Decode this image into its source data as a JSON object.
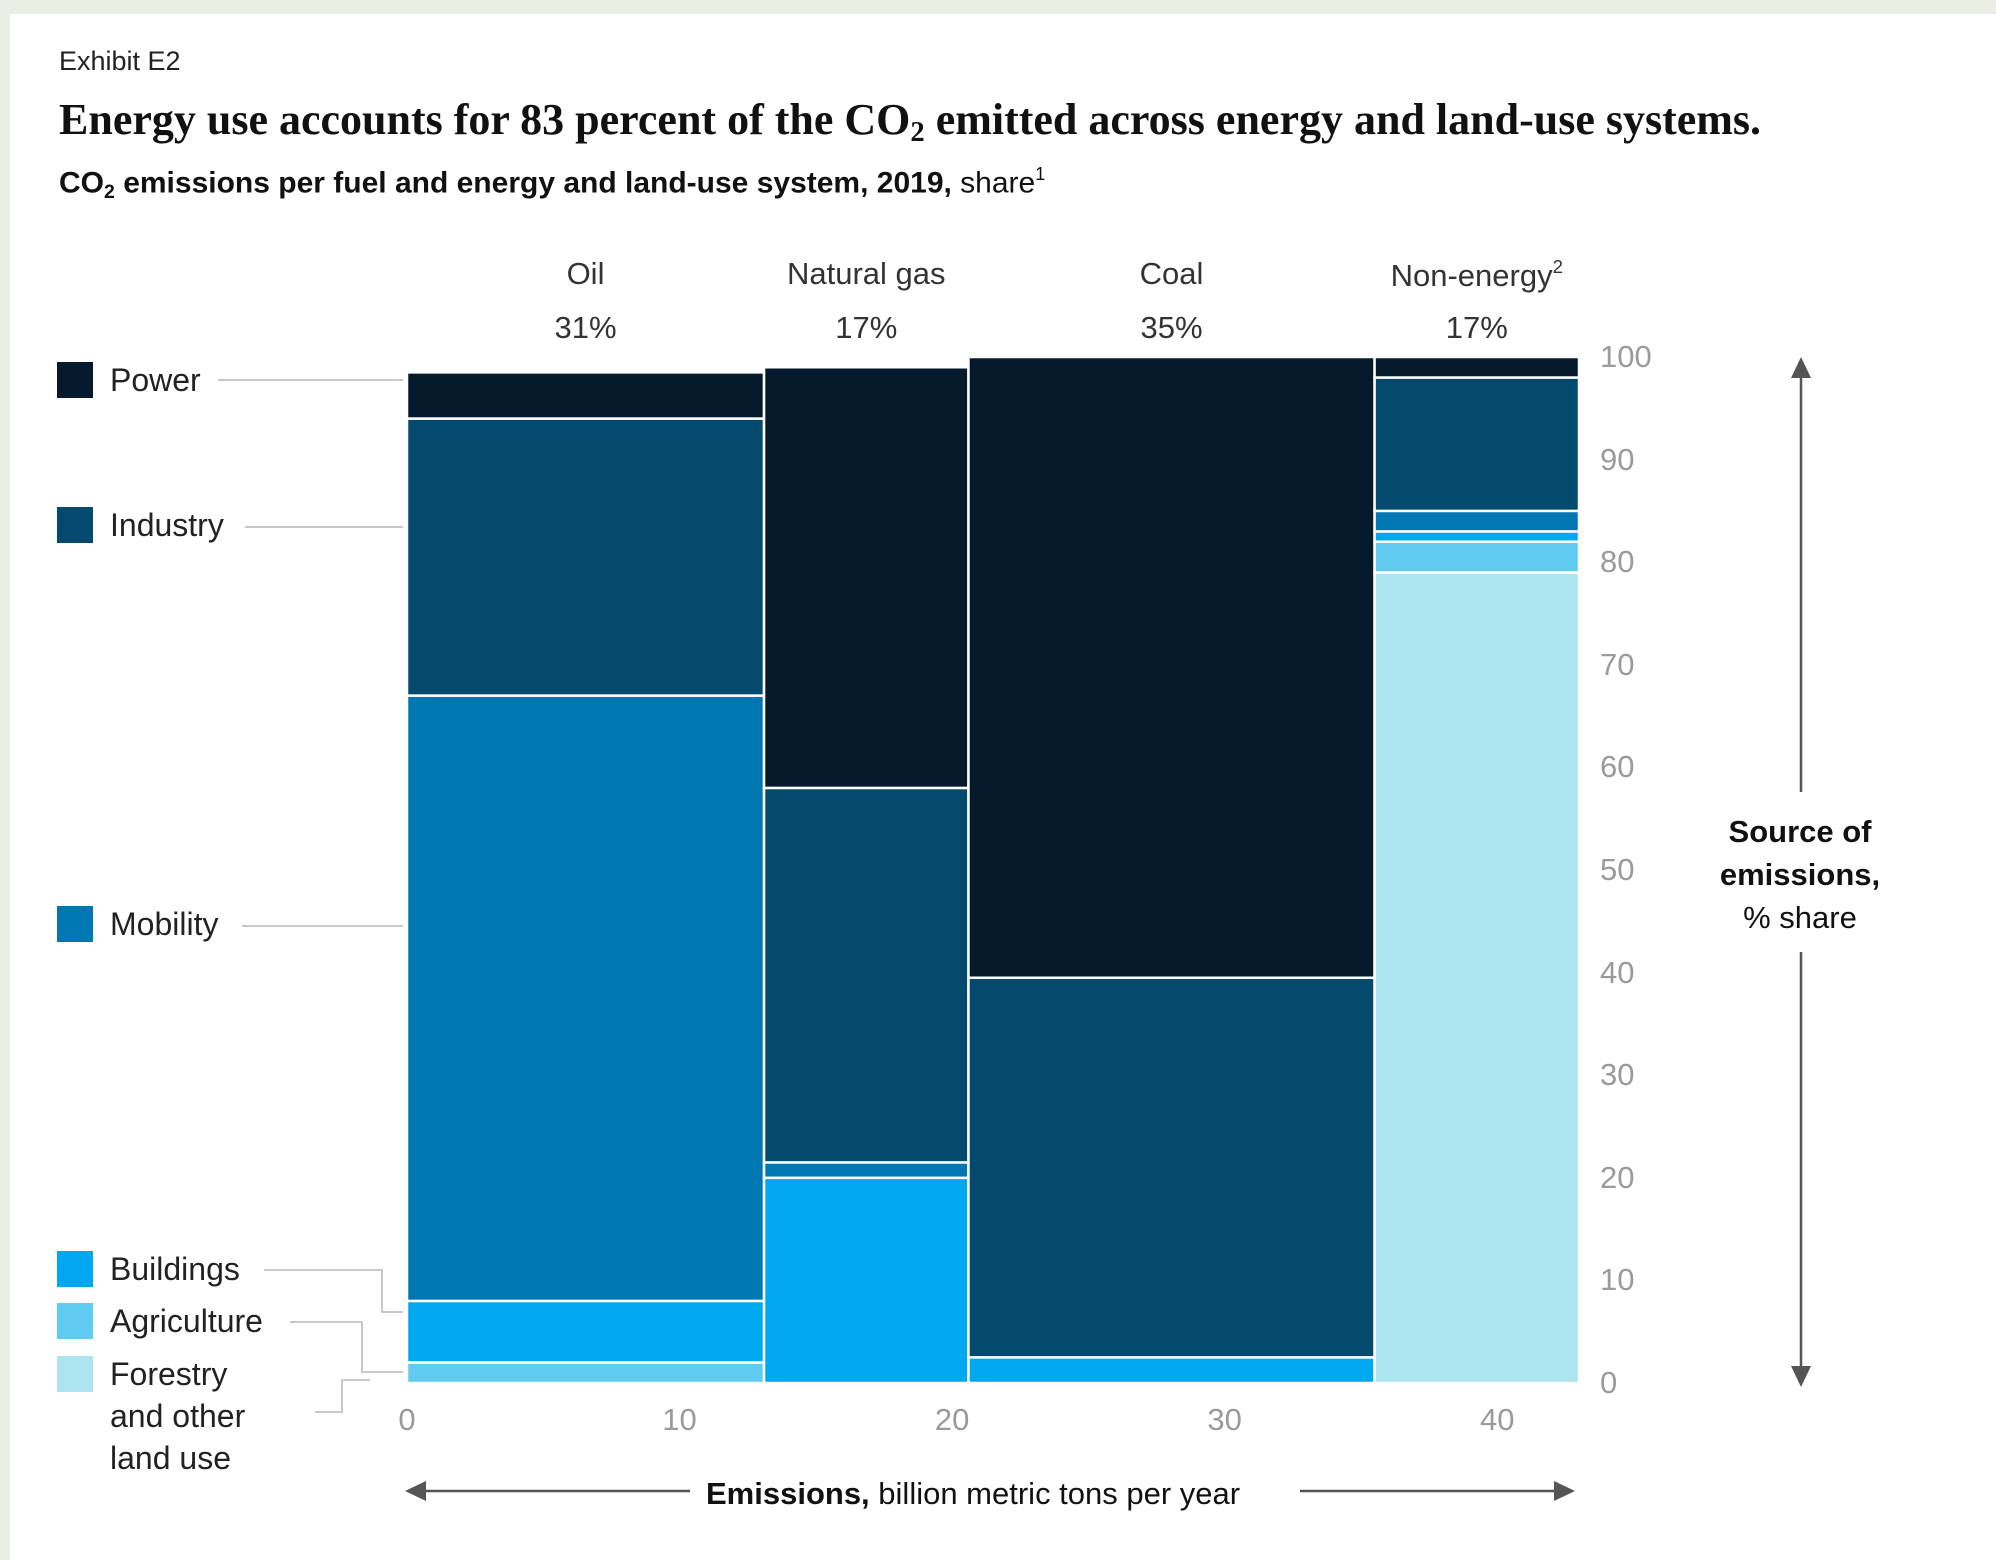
{
  "header": {
    "exhibit": "Exhibit E2",
    "title_pre": "Energy use accounts for 83 percent of the CO",
    "title_sub": "2",
    "title_post": " emitted across energy and land-use systems.",
    "subtitle_bold_pre": "CO",
    "subtitle_sub": "2",
    "subtitle_bold_post": " emissions per fuel and energy and land-use system, 2019,",
    "subtitle_rest": " share",
    "subtitle_footnote": "1"
  },
  "colors": {
    "Power": "#061a2d",
    "Industry": "#04496e",
    "Mobility": "#0077b1",
    "Buildings": "#00a8f0",
    "Agriculture": "#5fcbf1",
    "Forestry and other land use": "#ace4ef"
  },
  "legend": [
    {
      "label": "Power",
      "color": "#061a2d"
    },
    {
      "label": "Industry",
      "color": "#04496e"
    },
    {
      "label": "Mobility",
      "color": "#0077b1"
    },
    {
      "label": "Buildings",
      "color": "#00a8f0"
    },
    {
      "label": "Agriculture",
      "color": "#5fcbf1"
    },
    {
      "label_lines": [
        "Forestry",
        "and other",
        "land use"
      ],
      "color": "#ace4ef"
    }
  ],
  "axis": {
    "source_title_bold": "Source of emissions,",
    "source_title_rest": "% share",
    "x_title_bold": "Emissions,",
    "x_title_rest": " billion metric tons per year"
  },
  "chart_data": {
    "type": "bar",
    "subtype": "marimekko",
    "title": "Energy use accounts for 83 percent of the CO2 emitted across energy and land-use systems.",
    "subtitle": "CO2 emissions per fuel and energy and land-use system, 2019, share",
    "xlabel": "Emissions, billion metric tons per year",
    "ylabel": "Source of emissions, % share",
    "xlim": [
      0,
      43
    ],
    "ylim": [
      0,
      100
    ],
    "x_ticks": [
      0,
      10,
      20,
      30,
      40
    ],
    "y_ticks": [
      0,
      10,
      20,
      30,
      40,
      50,
      60,
      70,
      80,
      90,
      100
    ],
    "categories": [
      "Oil",
      "Natural gas",
      "Coal",
      "Non-energy"
    ],
    "category_footnotes": [
      "",
      "",
      "",
      "2"
    ],
    "category_share_labels": [
      "31%",
      "17%",
      "35%",
      "17%"
    ],
    "category_widths": [
      13.1,
      7.5,
      14.9,
      7.5
    ],
    "series_order": [
      "Forestry and other land use",
      "Agriculture",
      "Buildings",
      "Mobility",
      "Industry",
      "Power"
    ],
    "series": [
      {
        "name": "Forestry and other land use",
        "values": [
          0,
          0,
          0,
          79
        ]
      },
      {
        "name": "Agriculture",
        "values": [
          2,
          0,
          0,
          3
        ]
      },
      {
        "name": "Buildings",
        "values": [
          6,
          20,
          2.5,
          1
        ]
      },
      {
        "name": "Mobility",
        "values": [
          59,
          1.5,
          0,
          2
        ]
      },
      {
        "name": "Industry",
        "values": [
          27,
          36.5,
          37,
          13
        ]
      },
      {
        "name": "Power",
        "values": [
          4.5,
          41,
          60.5,
          2
        ]
      }
    ],
    "grid": false,
    "legend_position": "left"
  }
}
